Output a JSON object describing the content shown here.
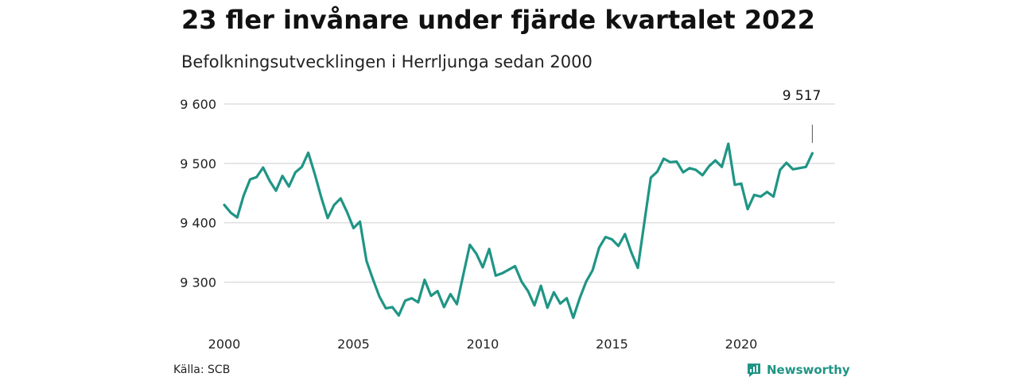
{
  "header": {
    "title": "23 fler invånare under fjärde kvartalet 2022",
    "subtitle": "Befolkningsutvecklingen i Herrljunga sedan 2000"
  },
  "footer": {
    "source": "Källa: SCB",
    "brand": "Newsworthy",
    "brand_icon": "bar-chart-icon"
  },
  "colors": {
    "line": "#1f9585",
    "grid": "#dddddd",
    "text": "#222222"
  },
  "chart_data": {
    "type": "line",
    "title": "23 fler invånare under fjärde kvartalet 2022",
    "subtitle": "Befolkningsutvecklingen i Herrljunga sedan 2000",
    "xlabel": "",
    "ylabel": "",
    "xlim": [
      2000,
      2023
    ],
    "ylim": [
      9235,
      9600
    ],
    "x_ticks": [
      2000,
      2005,
      2010,
      2015,
      2020
    ],
    "x_tick_labels": [
      "2000",
      "2005",
      "2010",
      "2015",
      "2020"
    ],
    "y_ticks": [
      9300,
      9400,
      9500,
      9600
    ],
    "y_tick_labels": [
      "9 300",
      "9 400",
      "9 500",
      "9 600"
    ],
    "grid": "horizontal",
    "annotation": {
      "x": 2022.75,
      "y": 9517,
      "label": "9 517"
    },
    "series": [
      {
        "x_start": 2000,
        "step": 0.25,
        "values": [
          9430,
          9417,
          9409,
          9446,
          9473,
          9477,
          9493,
          9471,
          9454,
          9479,
          9461,
          9485,
          9494,
          9518,
          9482,
          9443,
          9408,
          9430,
          9441,
          9418,
          9391,
          9402,
          9336,
          9305,
          9276,
          9256,
          9258,
          9244,
          9269,
          9273,
          9266,
          9304,
          9277,
          9285,
          9258,
          9280,
          9263,
          9313,
          9363,
          9348,
          9325,
          9356,
          9311,
          9315,
          9321,
          9327,
          9301,
          9285,
          9261,
          9294,
          9257,
          9283,
          9264,
          9273,
          9240,
          9273,
          9301,
          9320,
          9358,
          9376,
          9372,
          9361,
          9381,
          9350,
          9324,
          9400,
          9476,
          9486,
          9508,
          9502,
          9503,
          9485,
          9492,
          9489,
          9480,
          9495,
          9505,
          9494,
          9533,
          9464,
          9466,
          9423,
          9447,
          9444,
          9452,
          9444,
          9489,
          9501,
          9490,
          9492,
          9494,
          9517
        ]
      }
    ]
  }
}
